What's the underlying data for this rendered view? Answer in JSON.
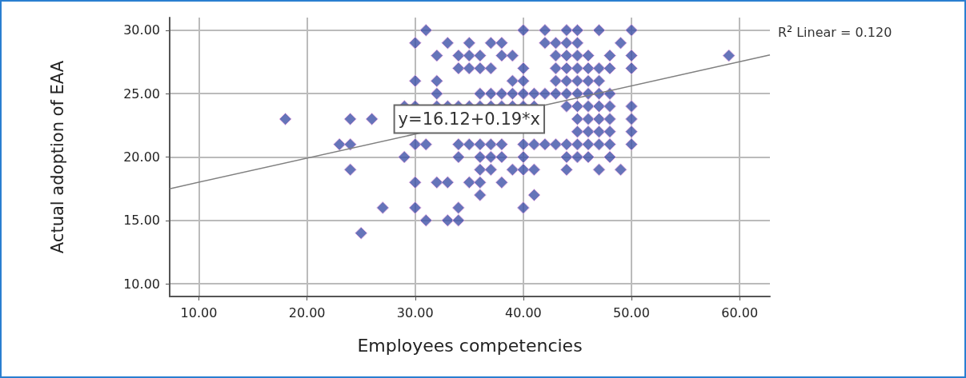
{
  "chart_data": {
    "type": "scatter",
    "xlabel": "Employees competencies",
    "ylabel": "Actual adoption of EAA",
    "xlim": [
      7.3,
      62.8
    ],
    "ylim": [
      9,
      31
    ],
    "xticks": [
      {
        "value": 10,
        "label": "10.00"
      },
      {
        "value": 20,
        "label": "20.00"
      },
      {
        "value": 30,
        "label": "30.00"
      },
      {
        "value": 40,
        "label": "40.00"
      },
      {
        "value": 50,
        "label": "50.00"
      },
      {
        "value": 60,
        "label": "60.00"
      }
    ],
    "yticks": [
      {
        "value": 10,
        "label": "10.00"
      },
      {
        "value": 15,
        "label": "15.00"
      },
      {
        "value": 20,
        "label": "20.00"
      },
      {
        "value": 25,
        "label": "25.00"
      },
      {
        "value": 30,
        "label": "30.00"
      }
    ],
    "grid": true,
    "marker": "diamond",
    "series": [
      {
        "color": "#3f51a8",
        "x": [
          31,
          40,
          42,
          44,
          45,
          47,
          50,
          30,
          33,
          35,
          37,
          38,
          42,
          43,
          44,
          45,
          49,
          32,
          34,
          35,
          36,
          38,
          39,
          43,
          44,
          45,
          46,
          48,
          50,
          59,
          34,
          35,
          36,
          37,
          40,
          43,
          44,
          45,
          46,
          47,
          48,
          50,
          30,
          32,
          39,
          40,
          43,
          44,
          45,
          46,
          47,
          32,
          36,
          37,
          38,
          39,
          40,
          41,
          42,
          43,
          44,
          45,
          46,
          47,
          48,
          29,
          30,
          32,
          33,
          34,
          35,
          36,
          37,
          38,
          39,
          40,
          41,
          44,
          45,
          46,
          47,
          48,
          50,
          18,
          24,
          26,
          45,
          46,
          47,
          48,
          50,
          45,
          46,
          47,
          48,
          50,
          23,
          24,
          30,
          31,
          34,
          35,
          36,
          37,
          38,
          40,
          41,
          42,
          43,
          44,
          45,
          46,
          47,
          48,
          50,
          29,
          34,
          36,
          37,
          38,
          40,
          44,
          45,
          46,
          48,
          24,
          36,
          37,
          39,
          40,
          41,
          44,
          47,
          49,
          30,
          32,
          33,
          35,
          36,
          38,
          36,
          41,
          27,
          30,
          34,
          40,
          31,
          33,
          34,
          25
        ],
        "values": [
          30,
          30,
          30,
          30,
          30,
          30,
          30,
          29,
          29,
          29,
          29,
          29,
          29,
          29,
          29,
          29,
          29,
          28,
          28,
          28,
          28,
          28,
          28,
          28,
          28,
          28,
          28,
          28,
          28,
          28,
          27,
          27,
          27,
          27,
          27,
          27,
          27,
          27,
          27,
          27,
          27,
          27,
          26,
          26,
          26,
          26,
          26,
          26,
          26,
          26,
          26,
          25,
          25,
          25,
          25,
          25,
          25,
          25,
          25,
          25,
          25,
          25,
          25,
          25,
          25,
          24,
          24,
          24,
          24,
          24,
          24,
          24,
          24,
          24,
          24,
          24,
          24,
          24,
          24,
          24,
          24,
          24,
          24,
          23,
          23,
          23,
          23,
          23,
          23,
          23,
          23,
          22,
          22,
          22,
          22,
          22,
          21,
          21,
          21,
          21,
          21,
          21,
          21,
          21,
          21,
          21,
          21,
          21,
          21,
          21,
          21,
          21,
          21,
          21,
          21,
          20,
          20,
          20,
          20,
          20,
          20,
          20,
          20,
          20,
          20,
          19,
          19,
          19,
          19,
          19,
          19,
          19,
          19,
          19,
          18,
          18,
          18,
          18,
          18,
          18,
          17,
          17,
          16,
          16,
          16,
          16,
          15,
          15,
          15,
          14
        ]
      },
      {
        "type": "line",
        "color": "#808080",
        "marker": "none",
        "x": [
          7.3,
          62.8
        ],
        "values": [
          17.5,
          28.05
        ]
      }
    ],
    "annotations": [
      {
        "text": "y=16.12+0.19*x",
        "x": 35,
        "y": 23
      },
      "R$^{2}$ Linear = 0.120"
    ]
  }
}
